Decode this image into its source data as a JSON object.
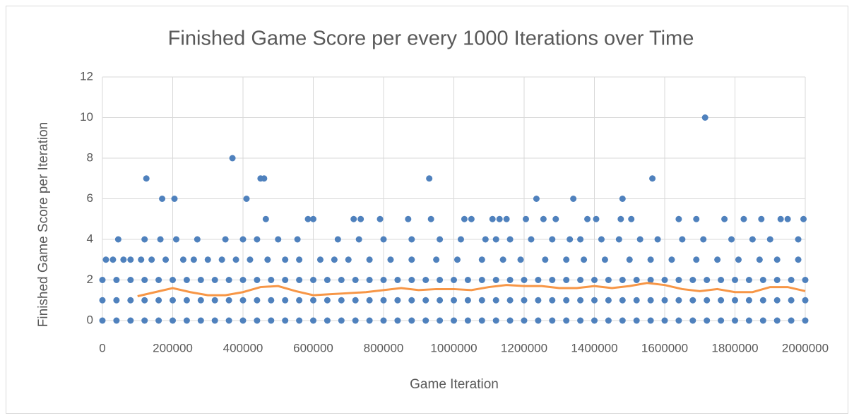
{
  "chart_data": {
    "type": "scatter",
    "title": "Finished Game Score per every 1000 Iterations over Time",
    "xlabel": "Game Iteration",
    "ylabel": "Finished Game Score per Iteration",
    "xlim": [
      0,
      2000000
    ],
    "xticks": [
      0,
      200000,
      400000,
      600000,
      800000,
      1000000,
      1200000,
      1400000,
      1600000,
      1800000,
      2000000
    ],
    "ylim": [
      0,
      12
    ],
    "yticks": [
      0,
      2,
      4,
      6,
      8,
      10,
      12
    ],
    "grid": true,
    "series": [
      {
        "color": "#4f81bd",
        "x": [
          0,
          40000,
          80000,
          120000,
          160000,
          200000,
          240000,
          280000,
          320000,
          360000,
          400000,
          440000,
          480000,
          520000,
          560000,
          600000,
          640000,
          680000,
          720000,
          760000,
          800000,
          840000,
          880000,
          920000,
          960000,
          1000000,
          1040000,
          1080000,
          1120000,
          1160000,
          1200000,
          1240000,
          1280000,
          1320000,
          1360000,
          1400000,
          1440000,
          1480000,
          1520000,
          1560000,
          1600000,
          1640000,
          1680000,
          1720000,
          1760000,
          1800000,
          1840000,
          1880000,
          1920000,
          1960000,
          2000000
        ],
        "values": [
          0,
          0,
          0,
          0,
          0,
          0,
          0,
          0,
          0,
          0,
          0,
          0,
          0,
          0,
          0,
          0,
          0,
          0,
          0,
          0,
          0,
          0,
          0,
          0,
          0,
          0,
          0,
          0,
          0,
          0,
          0,
          0,
          0,
          0,
          0,
          0,
          0,
          0,
          0,
          0,
          0,
          0,
          0,
          0,
          0,
          0,
          0,
          0,
          0,
          0,
          0
        ]
      },
      {
        "color": "#4f81bd",
        "x": [
          0,
          40000,
          80000,
          120000,
          160000,
          200000,
          240000,
          280000,
          320000,
          360000,
          400000,
          440000,
          480000,
          520000,
          560000,
          600000,
          640000,
          680000,
          720000,
          760000,
          800000,
          840000,
          880000,
          920000,
          960000,
          1000000,
          1040000,
          1080000,
          1120000,
          1160000,
          1200000,
          1240000,
          1280000,
          1320000,
          1360000,
          1400000,
          1440000,
          1480000,
          1520000,
          1560000,
          1600000,
          1640000,
          1680000,
          1720000,
          1760000,
          1800000,
          1840000,
          1880000,
          1920000,
          1960000,
          2000000
        ],
        "values": [
          1,
          1,
          1,
          1,
          1,
          1,
          1,
          1,
          1,
          1,
          1,
          1,
          1,
          1,
          1,
          1,
          1,
          1,
          1,
          1,
          1,
          1,
          1,
          1,
          1,
          1,
          1,
          1,
          1,
          1,
          1,
          1,
          1,
          1,
          1,
          1,
          1,
          1,
          1,
          1,
          1,
          1,
          1,
          1,
          1,
          1,
          1,
          1,
          1,
          1,
          1
        ]
      },
      {
        "color": "#4f81bd",
        "x": [
          0,
          40000,
          80000,
          120000,
          160000,
          200000,
          240000,
          280000,
          320000,
          360000,
          400000,
          440000,
          480000,
          520000,
          560000,
          600000,
          640000,
          680000,
          720000,
          760000,
          800000,
          840000,
          880000,
          920000,
          960000,
          1000000,
          1040000,
          1080000,
          1120000,
          1160000,
          1200000,
          1240000,
          1280000,
          1320000,
          1360000,
          1400000,
          1440000,
          1480000,
          1520000,
          1560000,
          1600000,
          1640000,
          1680000,
          1720000,
          1760000,
          1800000,
          1840000,
          1880000,
          1920000,
          1960000,
          2000000
        ],
        "values": [
          2,
          2,
          2,
          2,
          2,
          2,
          2,
          2,
          2,
          2,
          2,
          2,
          2,
          2,
          2,
          2,
          2,
          2,
          2,
          2,
          2,
          2,
          2,
          2,
          2,
          2,
          2,
          2,
          2,
          2,
          2,
          2,
          2,
          2,
          2,
          2,
          2,
          2,
          2,
          2,
          2,
          2,
          2,
          2,
          2,
          2,
          2,
          2,
          2,
          2,
          2
        ]
      },
      {
        "color": "#4f81bd",
        "x": [
          10000,
          30000,
          60000,
          80000,
          110000,
          140000,
          180000,
          230000,
          260000,
          300000,
          340000,
          380000,
          420000,
          470000,
          520000,
          560000,
          620000,
          660000,
          700000,
          760000,
          820000,
          880000,
          950000,
          1010000,
          1080000,
          1140000,
          1190000,
          1260000,
          1320000,
          1370000,
          1430000,
          1500000,
          1560000,
          1620000,
          1690000,
          1750000,
          1810000,
          1870000,
          1920000,
          1980000
        ],
        "values": [
          3,
          3,
          3,
          3,
          3,
          3,
          3,
          3,
          3,
          3,
          3,
          3,
          3,
          3,
          3,
          3,
          3,
          3,
          3,
          3,
          3,
          3,
          3,
          3,
          3,
          3,
          3,
          3,
          3,
          3,
          3,
          3,
          3,
          3,
          3,
          3,
          3,
          3,
          3,
          3
        ]
      },
      {
        "color": "#4f81bd",
        "x": [
          45000,
          120000,
          165000,
          210000,
          270000,
          350000,
          400000,
          440000,
          500000,
          555000,
          670000,
          730000,
          800000,
          880000,
          960000,
          1020000,
          1090000,
          1120000,
          1160000,
          1220000,
          1280000,
          1330000,
          1360000,
          1420000,
          1470000,
          1530000,
          1580000,
          1650000,
          1710000,
          1790000,
          1850000,
          1900000,
          1980000
        ],
        "values": [
          4,
          4,
          4,
          4,
          4,
          4,
          4,
          4,
          4,
          4,
          4,
          4,
          4,
          4,
          4,
          4,
          4,
          4,
          4,
          4,
          4,
          4,
          4,
          4,
          4,
          4,
          4,
          4,
          4,
          4,
          4,
          4,
          4
        ]
      },
      {
        "color": "#4f81bd",
        "x": [
          125000,
          170000,
          205000,
          370000,
          410000,
          450000,
          460000,
          465000,
          585000,
          600000,
          715000,
          735000,
          790000,
          870000,
          930000,
          935000,
          1030000,
          1050000,
          1110000,
          1130000,
          1150000,
          1205000,
          1235000,
          1255000,
          1290000,
          1340000,
          1380000,
          1405000,
          1475000,
          1480000,
          1505000,
          1565000,
          1640000,
          1690000,
          1715000,
          1770000,
          1825000,
          1875000,
          1930000,
          1950000,
          1995000
        ],
        "values": [
          7,
          6,
          6,
          8,
          6,
          7,
          7,
          5,
          5,
          5,
          5,
          5,
          5,
          5,
          7,
          5,
          5,
          5,
          5,
          5,
          5,
          5,
          6,
          5,
          5,
          6,
          5,
          5,
          5,
          6,
          5,
          7,
          5,
          5,
          10,
          5,
          5,
          5,
          5,
          5,
          5
        ]
      },
      {
        "type": "line",
        "color": "#f79646",
        "x": [
          100000,
          150000,
          200000,
          250000,
          300000,
          350000,
          400000,
          450000,
          500000,
          550000,
          600000,
          650000,
          700000,
          750000,
          800000,
          850000,
          900000,
          950000,
          1000000,
          1050000,
          1100000,
          1150000,
          1200000,
          1250000,
          1300000,
          1350000,
          1400000,
          1450000,
          1500000,
          1550000,
          1600000,
          1650000,
          1700000,
          1750000,
          1800000,
          1850000,
          1900000,
          1950000,
          2000000
        ],
        "values": [
          1.2,
          1.4,
          1.6,
          1.4,
          1.25,
          1.25,
          1.4,
          1.65,
          1.7,
          1.45,
          1.25,
          1.3,
          1.35,
          1.4,
          1.5,
          1.6,
          1.5,
          1.55,
          1.55,
          1.5,
          1.65,
          1.75,
          1.7,
          1.7,
          1.6,
          1.6,
          1.7,
          1.6,
          1.7,
          1.85,
          1.75,
          1.55,
          1.45,
          1.55,
          1.4,
          1.4,
          1.65,
          1.65,
          1.45
        ]
      }
    ]
  }
}
